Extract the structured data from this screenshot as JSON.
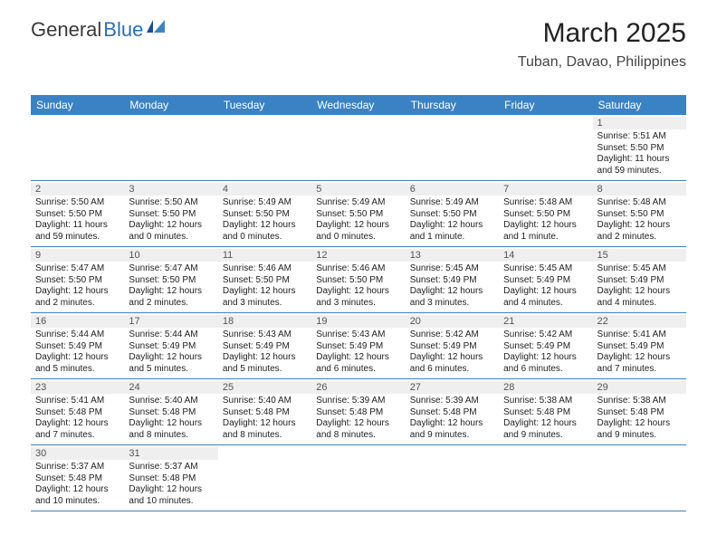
{
  "logo": {
    "part1": "General",
    "part2": "Blue"
  },
  "title": "March 2025",
  "location": "Tuban, Davao, Philippines",
  "header_bg": "#3b82c4",
  "days_of_week": [
    "Sunday",
    "Monday",
    "Tuesday",
    "Wednesday",
    "Thursday",
    "Friday",
    "Saturday"
  ],
  "layout": {
    "first_weekday_index": 6,
    "days_in_month": 31,
    "rows": 6,
    "cols": 7
  },
  "entries": {
    "1": {
      "sunrise": "5:51 AM",
      "sunset": "5:50 PM",
      "daylight": "11 hours and 59 minutes."
    },
    "2": {
      "sunrise": "5:50 AM",
      "sunset": "5:50 PM",
      "daylight": "11 hours and 59 minutes."
    },
    "3": {
      "sunrise": "5:50 AM",
      "sunset": "5:50 PM",
      "daylight": "12 hours and 0 minutes."
    },
    "4": {
      "sunrise": "5:49 AM",
      "sunset": "5:50 PM",
      "daylight": "12 hours and 0 minutes."
    },
    "5": {
      "sunrise": "5:49 AM",
      "sunset": "5:50 PM",
      "daylight": "12 hours and 0 minutes."
    },
    "6": {
      "sunrise": "5:49 AM",
      "sunset": "5:50 PM",
      "daylight": "12 hours and 1 minute."
    },
    "7": {
      "sunrise": "5:48 AM",
      "sunset": "5:50 PM",
      "daylight": "12 hours and 1 minute."
    },
    "8": {
      "sunrise": "5:48 AM",
      "sunset": "5:50 PM",
      "daylight": "12 hours and 2 minutes."
    },
    "9": {
      "sunrise": "5:47 AM",
      "sunset": "5:50 PM",
      "daylight": "12 hours and 2 minutes."
    },
    "10": {
      "sunrise": "5:47 AM",
      "sunset": "5:50 PM",
      "daylight": "12 hours and 2 minutes."
    },
    "11": {
      "sunrise": "5:46 AM",
      "sunset": "5:50 PM",
      "daylight": "12 hours and 3 minutes."
    },
    "12": {
      "sunrise": "5:46 AM",
      "sunset": "5:50 PM",
      "daylight": "12 hours and 3 minutes."
    },
    "13": {
      "sunrise": "5:45 AM",
      "sunset": "5:49 PM",
      "daylight": "12 hours and 3 minutes."
    },
    "14": {
      "sunrise": "5:45 AM",
      "sunset": "5:49 PM",
      "daylight": "12 hours and 4 minutes."
    },
    "15": {
      "sunrise": "5:45 AM",
      "sunset": "5:49 PM",
      "daylight": "12 hours and 4 minutes."
    },
    "16": {
      "sunrise": "5:44 AM",
      "sunset": "5:49 PM",
      "daylight": "12 hours and 5 minutes."
    },
    "17": {
      "sunrise": "5:44 AM",
      "sunset": "5:49 PM",
      "daylight": "12 hours and 5 minutes."
    },
    "18": {
      "sunrise": "5:43 AM",
      "sunset": "5:49 PM",
      "daylight": "12 hours and 5 minutes."
    },
    "19": {
      "sunrise": "5:43 AM",
      "sunset": "5:49 PM",
      "daylight": "12 hours and 6 minutes."
    },
    "20": {
      "sunrise": "5:42 AM",
      "sunset": "5:49 PM",
      "daylight": "12 hours and 6 minutes."
    },
    "21": {
      "sunrise": "5:42 AM",
      "sunset": "5:49 PM",
      "daylight": "12 hours and 6 minutes."
    },
    "22": {
      "sunrise": "5:41 AM",
      "sunset": "5:49 PM",
      "daylight": "12 hours and 7 minutes."
    },
    "23": {
      "sunrise": "5:41 AM",
      "sunset": "5:48 PM",
      "daylight": "12 hours and 7 minutes."
    },
    "24": {
      "sunrise": "5:40 AM",
      "sunset": "5:48 PM",
      "daylight": "12 hours and 8 minutes."
    },
    "25": {
      "sunrise": "5:40 AM",
      "sunset": "5:48 PM",
      "daylight": "12 hours and 8 minutes."
    },
    "26": {
      "sunrise": "5:39 AM",
      "sunset": "5:48 PM",
      "daylight": "12 hours and 8 minutes."
    },
    "27": {
      "sunrise": "5:39 AM",
      "sunset": "5:48 PM",
      "daylight": "12 hours and 9 minutes."
    },
    "28": {
      "sunrise": "5:38 AM",
      "sunset": "5:48 PM",
      "daylight": "12 hours and 9 minutes."
    },
    "29": {
      "sunrise": "5:38 AM",
      "sunset": "5:48 PM",
      "daylight": "12 hours and 9 minutes."
    },
    "30": {
      "sunrise": "5:37 AM",
      "sunset": "5:48 PM",
      "daylight": "12 hours and 10 minutes."
    },
    "31": {
      "sunrise": "5:37 AM",
      "sunset": "5:48 PM",
      "daylight": "12 hours and 10 minutes."
    }
  },
  "labels": {
    "sunrise": "Sunrise:",
    "sunset": "Sunset:",
    "daylight": "Daylight:"
  },
  "style": {
    "cell_font_size": 10,
    "daynum_bg": "#efefef",
    "row_border_color": "#3b82c4",
    "text_color": "#222222"
  }
}
